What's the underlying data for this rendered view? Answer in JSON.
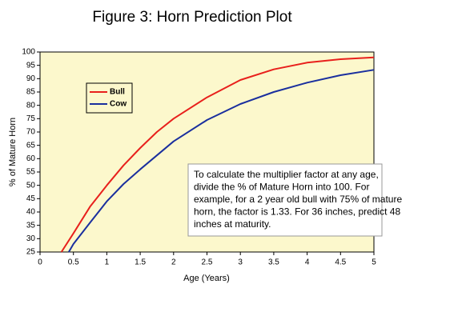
{
  "chart_data": {
    "type": "line",
    "title": "Figure 3: Horn Prediction Plot",
    "x_label": "Age (Years)",
    "y_label": "% of Mature Horn",
    "xlim": [
      0,
      5
    ],
    "xticks": [
      0,
      0.5,
      1,
      1.5,
      2,
      2.5,
      3,
      3.5,
      4,
      4.5,
      5
    ],
    "ylim": [
      25,
      100
    ],
    "yticks": [
      25,
      30,
      35,
      40,
      45,
      50,
      55,
      60,
      65,
      70,
      75,
      80,
      85,
      90,
      95,
      100
    ],
    "background": "#fcf8cc",
    "series": [
      {
        "name": "Bull",
        "color": "#e8201c",
        "x": [
          0.32,
          0.5,
          0.75,
          1,
          1.25,
          1.5,
          1.75,
          2,
          2.5,
          3,
          3.5,
          4,
          4.5,
          5
        ],
        "values": [
          25,
          32,
          42,
          50,
          57.5,
          64,
          70,
          75,
          83,
          89.5,
          93.5,
          96,
          97.3,
          98
        ]
      },
      {
        "name": "Cow",
        "color": "#1a2f9e",
        "x": [
          0.43,
          0.5,
          0.75,
          1,
          1.25,
          1.5,
          2,
          2.5,
          3,
          3.5,
          4,
          4.5,
          5
        ],
        "values": [
          25,
          28,
          36,
          44,
          50.5,
          56,
          66.5,
          74.5,
          80.5,
          85,
          88.5,
          91.3,
          93.3
        ]
      }
    ],
    "annotation": [
      "To calculate the multiplier factor at any age,",
      "divide the % of Mature Horn into 100.  For",
      "example, for a 2 year old bull with 75% of mature",
      "horn, the factor is 1.33.  For 36 inches, predict 48",
      "inches at maturity."
    ]
  }
}
